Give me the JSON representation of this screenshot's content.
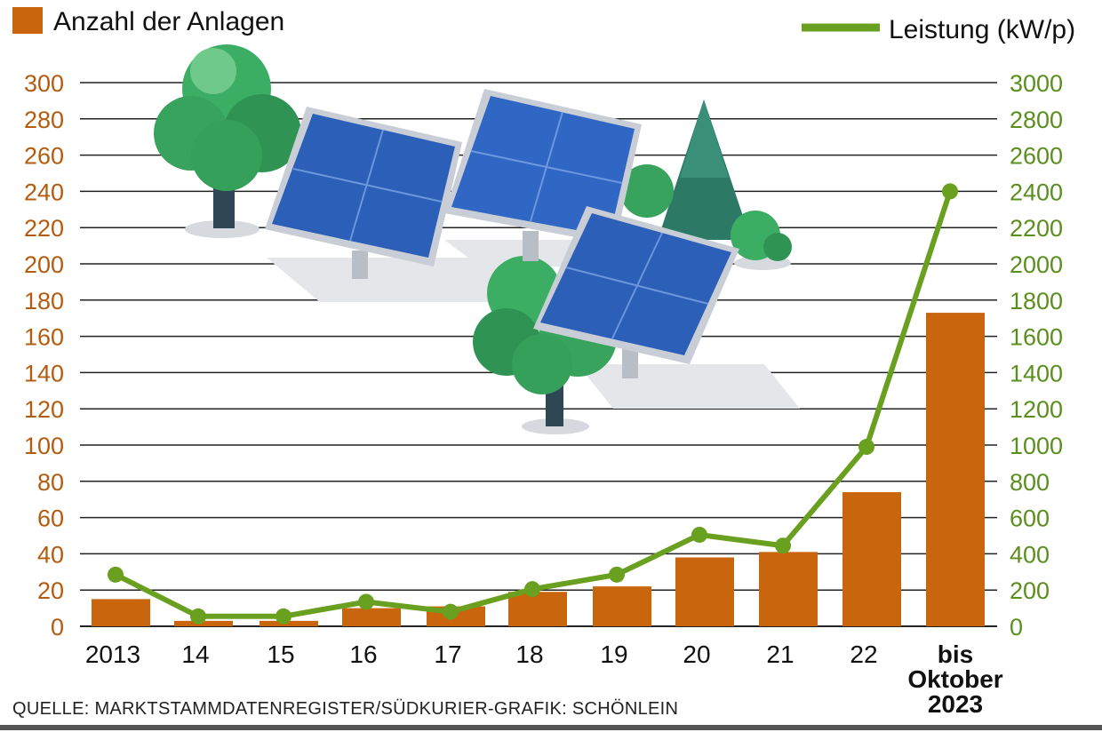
{
  "colors": {
    "bars": "#c9650c",
    "line": "#6aa020",
    "left_axis": "#b35c10",
    "right_axis": "#5a8f1e",
    "grid": "#222222"
  },
  "legend": {
    "bars_label": "Anzahl der Anlagen",
    "line_label": "Leistung (kW/p)"
  },
  "source": "QUELLE: MARKTSTAMMDATENREGISTER/SÜDKURIER-GRAFIK: SCHÖNLEIN",
  "illustration": "solar-panels-and-trees-icon",
  "chart_data": {
    "type": "bar",
    "categories": [
      "2013",
      "14",
      "15",
      "16",
      "17",
      "18",
      "19",
      "20",
      "21",
      "22",
      "bis Oktober 2023"
    ],
    "category_lines": [
      [
        "2013"
      ],
      [
        "14"
      ],
      [
        "15"
      ],
      [
        "16"
      ],
      [
        "17"
      ],
      [
        "18"
      ],
      [
        "19"
      ],
      [
        "20"
      ],
      [
        "21"
      ],
      [
        "22"
      ],
      [
        "bis",
        "Oktober",
        "2023"
      ]
    ],
    "series": [
      {
        "name": "Anzahl der Anlagen",
        "type": "bar",
        "axis": "left",
        "values": [
          15,
          3,
          3,
          10,
          11,
          19,
          22,
          38,
          41,
          74,
          173
        ]
      },
      {
        "name": "Leistung (kW/p)",
        "type": "line",
        "axis": "right",
        "values": [
          285,
          55,
          55,
          135,
          80,
          205,
          285,
          505,
          445,
          990,
          2400
        ]
      }
    ],
    "y_left": {
      "min": 0,
      "max": 300,
      "step": 20,
      "ticks": [
        "0",
        "20",
        "40",
        "60",
        "80",
        "100",
        "120",
        "140",
        "160",
        "180",
        "200",
        "220",
        "240",
        "260",
        "280",
        "300"
      ]
    },
    "y_right": {
      "min": 0,
      "max": 3000,
      "step": 200,
      "ticks": [
        "0",
        "200",
        "400",
        "600",
        "800",
        "1000",
        "1200",
        "1400",
        "1600",
        "1800",
        "2000",
        "2200",
        "2400",
        "2600",
        "2800",
        "3000"
      ]
    },
    "grid": true,
    "legend_position": "top"
  }
}
